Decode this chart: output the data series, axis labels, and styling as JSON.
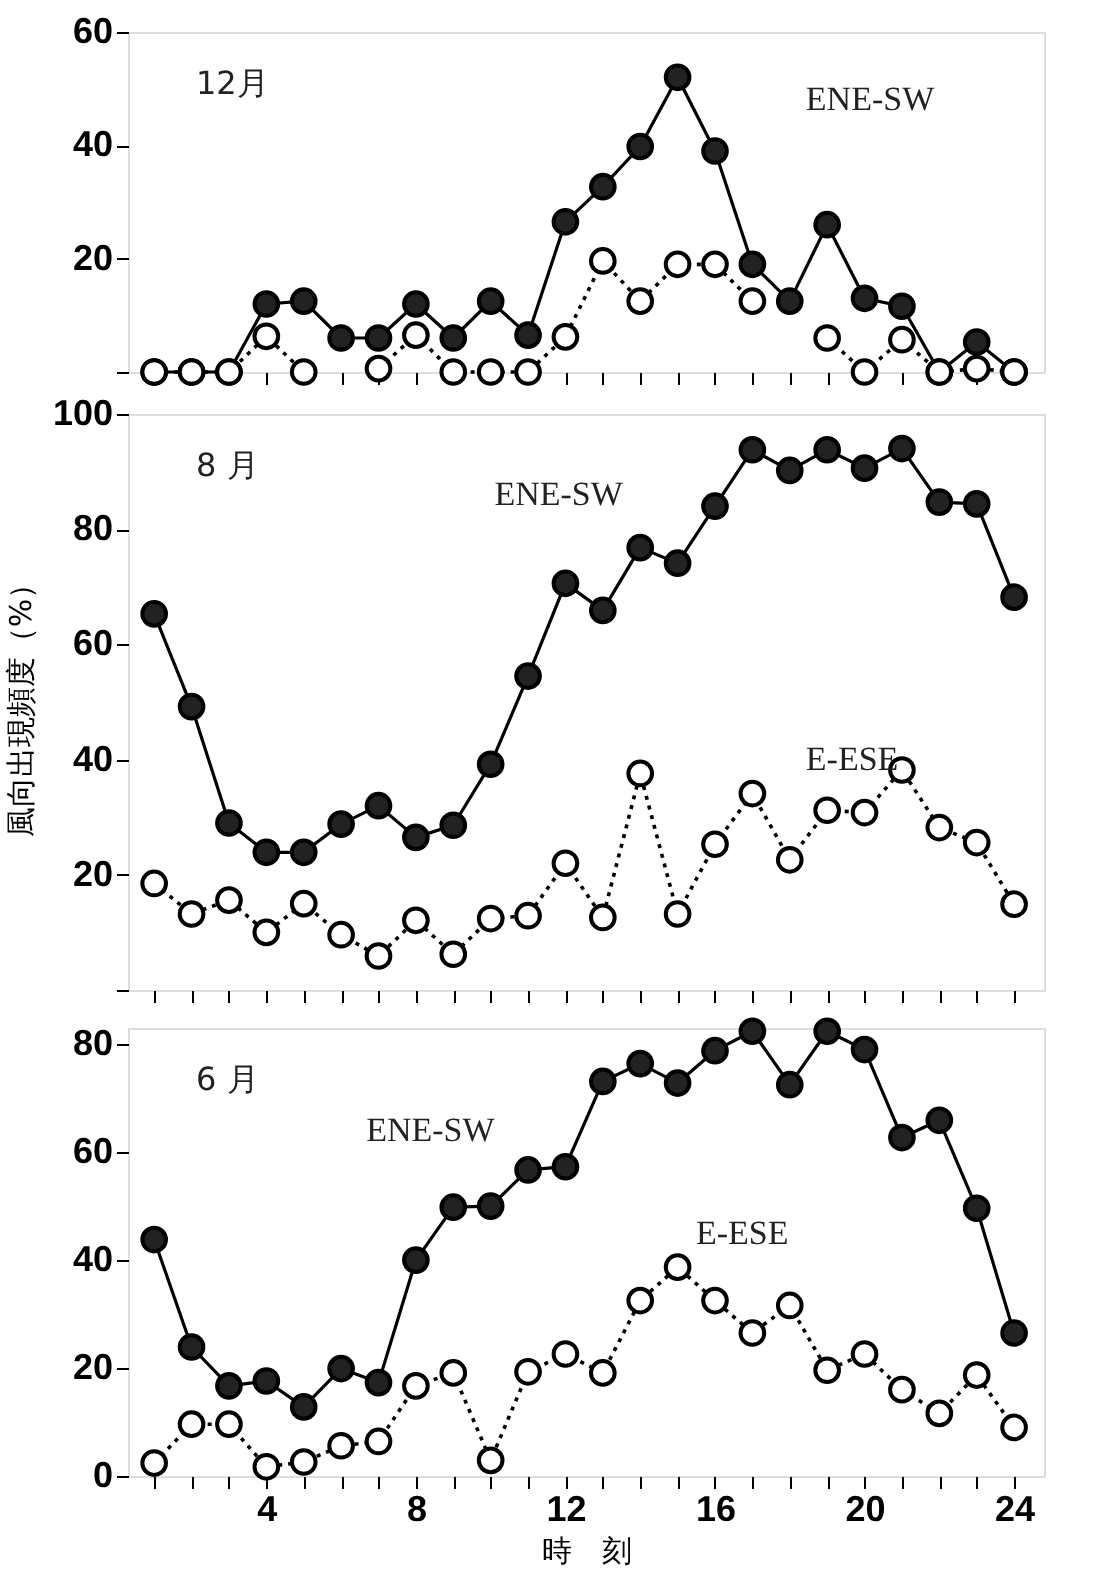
{
  "chart_data": [
    {
      "type": "line",
      "title": "12月",
      "x": [
        1,
        2,
        3,
        4,
        5,
        6,
        7,
        8,
        9,
        10,
        11,
        12,
        13,
        14,
        15,
        16,
        17,
        18,
        19,
        20,
        21,
        22,
        23,
        24
      ],
      "xlim": [
        0.3,
        24.8
      ],
      "ylim": [
        0,
        60
      ],
      "xticks": [
        {
          "value": 1,
          "label": null
        },
        {
          "value": 2,
          "label": null
        },
        {
          "value": 3,
          "label": null
        },
        {
          "value": 4,
          "label": null
        },
        {
          "value": 5,
          "label": null
        },
        {
          "value": 6,
          "label": null
        },
        {
          "value": 7,
          "label": null
        },
        {
          "value": 8,
          "label": null
        },
        {
          "value": 9,
          "label": null
        },
        {
          "value": 10,
          "label": null
        },
        {
          "value": 11,
          "label": null
        },
        {
          "value": 12,
          "label": null
        },
        {
          "value": 13,
          "label": null
        },
        {
          "value": 14,
          "label": null
        },
        {
          "value": 15,
          "label": null
        },
        {
          "value": 16,
          "label": null
        },
        {
          "value": 17,
          "label": null
        },
        {
          "value": 18,
          "label": null
        },
        {
          "value": 19,
          "label": null
        },
        {
          "value": 20,
          "label": null
        },
        {
          "value": 21,
          "label": null
        },
        {
          "value": 22,
          "label": null
        },
        {
          "value": 23,
          "label": null
        },
        {
          "value": 24,
          "label": null
        }
      ],
      "yticks": [
        {
          "value": 0,
          "label": null
        },
        20,
        40,
        60
      ],
      "tick_labels": "y",
      "grid": false,
      "marker": "circle",
      "series": [
        {
          "name": "ENE-SW",
          "color": "#222222",
          "line_style": "solid",
          "values": [
            0,
            0,
            0,
            12,
            12.5,
            6,
            6,
            12,
            6,
            12.5,
            6.5,
            26.5,
            32.7,
            39.8,
            52,
            39,
            19,
            12.5,
            26,
            13,
            11.6,
            0,
            5.3,
            0
          ]
        },
        {
          "color": "#ffffff",
          "line_style": "dotted",
          "values": [
            0,
            0,
            0,
            6.3,
            0,
            null,
            0.6,
            6.5,
            0,
            0,
            0,
            6.2,
            19.6,
            12.5,
            19,
            19,
            12.5,
            null,
            6,
            0,
            5.7,
            0,
            0.6,
            0
          ]
        }
      ]
    },
    {
      "type": "line",
      "title": "8 月",
      "ylabel": "風向出現頻度（%）",
      "x": [
        1,
        2,
        3,
        4,
        5,
        6,
        7,
        8,
        9,
        10,
        11,
        12,
        13,
        14,
        15,
        16,
        17,
        18,
        19,
        20,
        21,
        22,
        23,
        24
      ],
      "xlim": [
        0.3,
        24.8
      ],
      "ylim": [
        0,
        100
      ],
      "xticks": [
        {
          "value": 1,
          "label": null
        },
        {
          "value": 2,
          "label": null
        },
        {
          "value": 3,
          "label": null
        },
        {
          "value": 4,
          "label": null
        },
        {
          "value": 5,
          "label": null
        },
        {
          "value": 6,
          "label": null
        },
        {
          "value": 7,
          "label": null
        },
        {
          "value": 8,
          "label": null
        },
        {
          "value": 9,
          "label": null
        },
        {
          "value": 10,
          "label": null
        },
        {
          "value": 11,
          "label": null
        },
        {
          "value": 12,
          "label": null
        },
        {
          "value": 13,
          "label": null
        },
        {
          "value": 14,
          "label": null
        },
        {
          "value": 15,
          "label": null
        },
        {
          "value": 16,
          "label": null
        },
        {
          "value": 17,
          "label": null
        },
        {
          "value": 18,
          "label": null
        },
        {
          "value": 19,
          "label": null
        },
        {
          "value": 20,
          "label": null
        },
        {
          "value": 21,
          "label": null
        },
        {
          "value": 22,
          "label": null
        },
        {
          "value": 23,
          "label": null
        },
        {
          "value": 24,
          "label": null
        }
      ],
      "yticks": [
        {
          "value": 0,
          "label": null
        },
        20,
        40,
        60,
        80,
        100
      ],
      "tick_labels": "y",
      "grid": false,
      "marker": "circle",
      "series": [
        {
          "name": "ENE-SW",
          "color": "#222222",
          "line_style": "solid",
          "values": [
            65.3,
            49.2,
            29,
            23.9,
            23.9,
            28.8,
            32,
            26.5,
            28.6,
            39.2,
            54.5,
            70.6,
            65.9,
            76.8,
            74.1,
            84,
            93.8,
            90.2,
            93.8,
            90.6,
            94,
            84.7,
            84.4,
            68.2
          ]
        },
        {
          "name": "E-ESE",
          "color": "#ffffff",
          "line_style": "dotted",
          "values": [
            18.5,
            13.2,
            15.6,
            10,
            15,
            9.6,
            5.9,
            12.1,
            6.2,
            12.4,
            12.9,
            22,
            12.6,
            37.6,
            13.2,
            25.3,
            34.1,
            22.6,
            31.2,
            30.8,
            38.2,
            28.2,
            25.6,
            14.9
          ]
        }
      ]
    },
    {
      "type": "line",
      "title": "6 月",
      "xlabel": "時　刻",
      "x": [
        1,
        2,
        3,
        4,
        5,
        6,
        7,
        8,
        9,
        10,
        11,
        12,
        13,
        14,
        15,
        16,
        17,
        18,
        19,
        20,
        21,
        22,
        23,
        24
      ],
      "xlim": [
        0.3,
        24.8
      ],
      "ylim": [
        0,
        83
      ],
      "xticks": [
        {
          "value": 1,
          "label": null
        },
        {
          "value": 2,
          "label": null
        },
        {
          "value": 3,
          "label": null
        },
        4,
        {
          "value": 5,
          "label": null
        },
        {
          "value": 6,
          "label": null
        },
        {
          "value": 7,
          "label": null
        },
        8,
        {
          "value": 9,
          "label": null
        },
        {
          "value": 10,
          "label": null
        },
        {
          "value": 11,
          "label": null
        },
        12,
        {
          "value": 13,
          "label": null
        },
        {
          "value": 14,
          "label": null
        },
        {
          "value": 15,
          "label": null
        },
        16,
        {
          "value": 17,
          "label": null
        },
        {
          "value": 18,
          "label": null
        },
        {
          "value": 19,
          "label": null
        },
        20,
        {
          "value": 21,
          "label": null
        },
        {
          "value": 22,
          "label": null
        },
        {
          "value": 23,
          "label": null
        },
        24
      ],
      "yticks": [
        0,
        20,
        40,
        60,
        80
      ],
      "grid": false,
      "marker": "circle",
      "series": [
        {
          "name": "ENE-SW",
          "color": "#222222",
          "line_style": "solid",
          "values": [
            43.8,
            23.9,
            16.7,
            17.6,
            12.8,
            19.9,
            17.3,
            40,
            49.8,
            50,
            56.7,
            57.3,
            73.1,
            76.4,
            72.8,
            78.8,
            82.4,
            72.5,
            82.4,
            79,
            62.7,
            65.9,
            49.6,
            26.5
          ]
        },
        {
          "name": "E-ESE",
          "color": "#ffffff",
          "line_style": "dotted",
          "values": [
            2.4,
            9.6,
            9.6,
            1.7,
            2.6,
            5.6,
            6.4,
            16.7,
            19.1,
            2.9,
            19.3,
            22.6,
            19.1,
            32.5,
            38.7,
            32.5,
            26.5,
            31.6,
            19.6,
            22.6,
            16,
            11.6,
            18.7,
            9
          ]
        }
      ]
    }
  ]
}
